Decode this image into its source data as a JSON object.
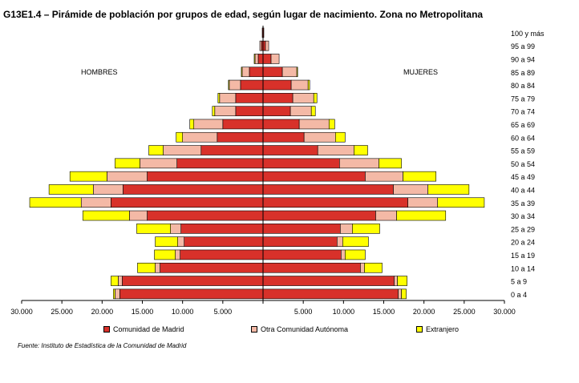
{
  "chart_data": {
    "type": "bar",
    "title": "G13E1.4 – Pirámide de población por grupos de edad, según lugar de nacimiento. Zona no Metropolitana",
    "side_labels": {
      "left": "HOMBRES",
      "right": "MUJERES"
    },
    "categories": [
      "0 a 4",
      "5 a 9",
      "10 a 14",
      "15 a 19",
      "20 a 24",
      "25 a 29",
      "30 a 34",
      "35 a 39",
      "40 a 44",
      "45 a 49",
      "50 a 54",
      "55 a 59",
      "60 a 64",
      "65 a 69",
      "70 a 74",
      "75 a 79",
      "80 a 84",
      "85 a 89",
      "90 a 94",
      "95 a 99",
      "100 y más"
    ],
    "series": [
      {
        "name": "Comunidad de Madrid",
        "hombres": [
          17800,
          17500,
          12800,
          10300,
          9800,
          10200,
          14400,
          18900,
          17400,
          14400,
          10700,
          7700,
          5700,
          5000,
          3400,
          3400,
          2800,
          1700,
          600,
          200,
          100
        ],
        "mujeres": [
          16800,
          16300,
          12100,
          9700,
          9200,
          9600,
          14000,
          18000,
          16200,
          12700,
          9500,
          6800,
          5100,
          4500,
          3400,
          3700,
          3500,
          2400,
          1000,
          300,
          100
        ]
      },
      {
        "name": "Otra Comunidad Autónoma",
        "hombres": [
          600,
          500,
          600,
          600,
          800,
          1300,
          2200,
          3700,
          3700,
          5000,
          4600,
          4700,
          4300,
          3600,
          2600,
          2000,
          1400,
          900,
          400,
          200,
          0
        ],
        "mujeres": [
          400,
          400,
          500,
          500,
          700,
          1500,
          2600,
          3700,
          4300,
          4700,
          4900,
          4500,
          3900,
          3700,
          2600,
          2600,
          2100,
          1800,
          1000,
          400,
          0
        ]
      },
      {
        "name": "Extranjero",
        "hombres": [
          200,
          900,
          2200,
          2600,
          2800,
          4200,
          5800,
          6400,
          5500,
          4600,
          3100,
          1800,
          800,
          500,
          300,
          200,
          100,
          100,
          100,
          0,
          0
        ],
        "mujeres": [
          600,
          1200,
          2200,
          2500,
          3200,
          3400,
          6100,
          5800,
          5100,
          4100,
          2800,
          1700,
          1200,
          700,
          500,
          400,
          200,
          100,
          0,
          0,
          0
        ]
      }
    ],
    "x_ticks": [
      "30.000",
      "25.000",
      "20.000",
      "15.000",
      "10.000",
      "5.000",
      "",
      "5.000",
      "10.000",
      "15.000",
      "20.000",
      "25.000",
      "30.000"
    ],
    "xlim": [
      -30000,
      30000
    ],
    "colors": {
      "madrid": "#d8312a",
      "otra": "#f4b9a6",
      "extranjero": "#ffff00"
    },
    "legend_position": "bottom",
    "source": "Fuente: Instituto de Estadística de la Comunidad de Madrid"
  }
}
